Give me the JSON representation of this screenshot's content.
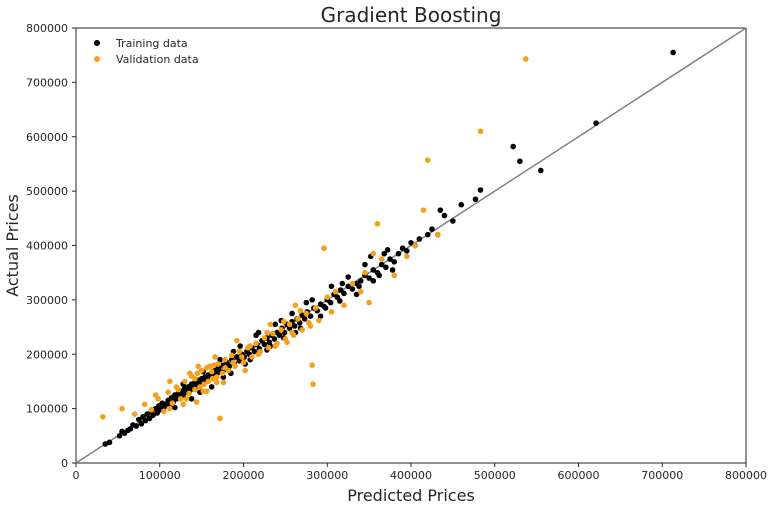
{
  "chart_data": {
    "type": "scatter",
    "title": "Gradient Boosting",
    "xlabel": "Predicted Prices",
    "ylabel": "Actual Prices",
    "xlim": [
      0,
      800000
    ],
    "ylim": [
      0,
      800000
    ],
    "xticks": [
      "0",
      "100000",
      "200000",
      "300000",
      "400000",
      "500000",
      "600000",
      "700000",
      "800000"
    ],
    "yticks": [
      "0",
      "100000",
      "200000",
      "300000",
      "400000",
      "500000",
      "600000",
      "700000",
      "800000"
    ],
    "grid": false,
    "legend_position": "top-left",
    "reference_line": {
      "from": [
        0,
        0
      ],
      "to": [
        800000,
        800000
      ],
      "color": "#808080"
    },
    "series": [
      {
        "name": "Training data",
        "color": "#000000",
        "points": [
          [
            35000,
            35000
          ],
          [
            40000,
            38000
          ],
          [
            52000,
            50000
          ],
          [
            55000,
            58000
          ],
          [
            58000,
            55000
          ],
          [
            62000,
            60000
          ],
          [
            65000,
            63000
          ],
          [
            68000,
            70000
          ],
          [
            72000,
            68000
          ],
          [
            75000,
            80000
          ],
          [
            78000,
            72000
          ],
          [
            80000,
            85000
          ],
          [
            83000,
            78000
          ],
          [
            85000,
            90000
          ],
          [
            88000,
            82000
          ],
          [
            90000,
            95000
          ],
          [
            92000,
            88000
          ],
          [
            95000,
            100000
          ],
          [
            97000,
            92000
          ],
          [
            99000,
            105000
          ],
          [
            101000,
            98000
          ],
          [
            103000,
            110000
          ],
          [
            105000,
            102000
          ],
          [
            107000,
            108000
          ],
          [
            110000,
            115000
          ],
          [
            112000,
            106000
          ],
          [
            114000,
            120000
          ],
          [
            116000,
            112000
          ],
          [
            118000,
            125000
          ],
          [
            120000,
            118000
          ],
          [
            122000,
            128000
          ],
          [
            124000,
            120000
          ],
          [
            126000,
            132000
          ],
          [
            128000,
            125000
          ],
          [
            130000,
            138000
          ],
          [
            132000,
            130000
          ],
          [
            134000,
            140000
          ],
          [
            136000,
            133000
          ],
          [
            138000,
            145000
          ],
          [
            140000,
            137000
          ],
          [
            142000,
            148000
          ],
          [
            144000,
            140000
          ],
          [
            146000,
            152000
          ],
          [
            148000,
            145000
          ],
          [
            150000,
            155000
          ],
          [
            152000,
            148000
          ],
          [
            154000,
            158000
          ],
          [
            156000,
            150000
          ],
          [
            158000,
            162000
          ],
          [
            160000,
            155000
          ],
          [
            162000,
            165000
          ],
          [
            164000,
            160000
          ],
          [
            166000,
            170000
          ],
          [
            168000,
            163000
          ],
          [
            170000,
            175000
          ],
          [
            172000,
            168000
          ],
          [
            175000,
            180000
          ],
          [
            178000,
            172000
          ],
          [
            180000,
            185000
          ],
          [
            183000,
            178000
          ],
          [
            186000,
            190000
          ],
          [
            189000,
            183000
          ],
          [
            192000,
            195000
          ],
          [
            195000,
            188000
          ],
          [
            198000,
            200000
          ],
          [
            201000,
            195000
          ],
          [
            204000,
            205000
          ],
          [
            207000,
            200000
          ],
          [
            210000,
            212000
          ],
          [
            213000,
            205000
          ],
          [
            216000,
            218000
          ],
          [
            219000,
            210000
          ],
          [
            222000,
            225000
          ],
          [
            225000,
            218000
          ],
          [
            228000,
            230000
          ],
          [
            231000,
            222000
          ],
          [
            234000,
            235000
          ],
          [
            237000,
            228000
          ],
          [
            240000,
            240000
          ],
          [
            243000,
            235000
          ],
          [
            246000,
            248000
          ],
          [
            249000,
            240000
          ],
          [
            252000,
            255000
          ],
          [
            255000,
            248000
          ],
          [
            258000,
            260000
          ],
          [
            261000,
            252000
          ],
          [
            264000,
            265000
          ],
          [
            267000,
            258000
          ],
          [
            270000,
            272000
          ],
          [
            273000,
            265000
          ],
          [
            276000,
            278000
          ],
          [
            280000,
            270000
          ],
          [
            284000,
            285000
          ],
          [
            288000,
            280000
          ],
          [
            292000,
            292000
          ],
          [
            296000,
            288000
          ],
          [
            300000,
            300000
          ],
          [
            304000,
            295000
          ],
          [
            308000,
            310000
          ],
          [
            312000,
            305000
          ],
          [
            316000,
            318000
          ],
          [
            320000,
            312000
          ],
          [
            325000,
            325000
          ],
          [
            330000,
            320000
          ],
          [
            335000,
            330000
          ],
          [
            340000,
            335000
          ],
          [
            345000,
            345000
          ],
          [
            350000,
            340000
          ],
          [
            355000,
            355000
          ],
          [
            360000,
            350000
          ],
          [
            365000,
            365000
          ],
          [
            370000,
            360000
          ],
          [
            375000,
            375000
          ],
          [
            380000,
            370000
          ],
          [
            385000,
            385000
          ],
          [
            390000,
            395000
          ],
          [
            395000,
            390000
          ],
          [
            400000,
            405000
          ],
          [
            405000,
            400000
          ],
          [
            410000,
            412000
          ],
          [
            420000,
            420000
          ],
          [
            425000,
            430000
          ],
          [
            432000,
            420000
          ],
          [
            435000,
            465000
          ],
          [
            440000,
            455000
          ],
          [
            450000,
            445000
          ],
          [
            460000,
            475000
          ],
          [
            477000,
            485000
          ],
          [
            483000,
            502000
          ],
          [
            522000,
            582000
          ],
          [
            530000,
            555000
          ],
          [
            555000,
            538000
          ],
          [
            621000,
            625000
          ],
          [
            713000,
            755000
          ],
          [
            118000,
            102000
          ],
          [
            128000,
            145000
          ],
          [
            148000,
            130000
          ],
          [
            162000,
            140000
          ],
          [
            172000,
            190000
          ],
          [
            185000,
            165000
          ],
          [
            196000,
            215000
          ],
          [
            208000,
            190000
          ],
          [
            215000,
            235000
          ],
          [
            228000,
            208000
          ],
          [
            238000,
            255000
          ],
          [
            248000,
            230000
          ],
          [
            258000,
            275000
          ],
          [
            268000,
            248000
          ],
          [
            282000,
            300000
          ],
          [
            292000,
            270000
          ],
          [
            305000,
            325000
          ],
          [
            315000,
            298000
          ],
          [
            325000,
            342000
          ],
          [
            335000,
            310000
          ],
          [
            345000,
            365000
          ],
          [
            355000,
            335000
          ],
          [
            368000,
            385000
          ],
          [
            378000,
            355000
          ],
          [
            138000,
            118000
          ],
          [
            152000,
            168000
          ],
          [
            176000,
            158000
          ],
          [
            188000,
            205000
          ],
          [
            202000,
            182000
          ],
          [
            218000,
            240000
          ],
          [
            232000,
            215000
          ],
          [
            245000,
            262000
          ],
          [
            262000,
            240000
          ],
          [
            275000,
            295000
          ],
          [
            298000,
            285000
          ],
          [
            318000,
            330000
          ],
          [
            338000,
            325000
          ],
          [
            352000,
            380000
          ],
          [
            362000,
            345000
          ],
          [
            372000,
            392000
          ]
        ]
      },
      {
        "name": "Validation data",
        "color": "#f5a01a",
        "points": [
          [
            32000,
            85000
          ],
          [
            55000,
            100000
          ],
          [
            70000,
            90000
          ],
          [
            82000,
            108000
          ],
          [
            90000,
            98000
          ],
          [
            98000,
            118000
          ],
          [
            105000,
            95000
          ],
          [
            110000,
            130000
          ],
          [
            115000,
            110000
          ],
          [
            120000,
            140000
          ],
          [
            125000,
            118000
          ],
          [
            130000,
            150000
          ],
          [
            135000,
            128000
          ],
          [
            138000,
            160000
          ],
          [
            142000,
            135000
          ],
          [
            145000,
            165000
          ],
          [
            148000,
            140000
          ],
          [
            150000,
            170000
          ],
          [
            153000,
            145000
          ],
          [
            156000,
            175000
          ],
          [
            158000,
            150000
          ],
          [
            160000,
            178000
          ],
          [
            163000,
            155000
          ],
          [
            165000,
            180000
          ],
          [
            168000,
            158000
          ],
          [
            170000,
            182000
          ],
          [
            172000,
            82000
          ],
          [
            175000,
            165000
          ],
          [
            178000,
            190000
          ],
          [
            182000,
            170000
          ],
          [
            186000,
            198000
          ],
          [
            190000,
            178000
          ],
          [
            195000,
            205000
          ],
          [
            200000,
            185000
          ],
          [
            205000,
            212000
          ],
          [
            210000,
            195000
          ],
          [
            215000,
            220000
          ],
          [
            220000,
            205000
          ],
          [
            225000,
            230000
          ],
          [
            230000,
            212000
          ],
          [
            235000,
            238000
          ],
          [
            240000,
            220000
          ],
          [
            245000,
            245000
          ],
          [
            250000,
            228000
          ],
          [
            255000,
            255000
          ],
          [
            260000,
            235000
          ],
          [
            265000,
            265000
          ],
          [
            270000,
            245000
          ],
          [
            275000,
            275000
          ],
          [
            280000,
            252000
          ],
          [
            283000,
            145000
          ],
          [
            282000,
            180000
          ],
          [
            286000,
            285000
          ],
          [
            290000,
            262000
          ],
          [
            296000,
            395000
          ],
          [
            300000,
            305000
          ],
          [
            305000,
            278000
          ],
          [
            310000,
            315000
          ],
          [
            320000,
            290000
          ],
          [
            330000,
            330000
          ],
          [
            340000,
            315000
          ],
          [
            345000,
            350000
          ],
          [
            350000,
            295000
          ],
          [
            355000,
            385000
          ],
          [
            360000,
            440000
          ],
          [
            365000,
            375000
          ],
          [
            380000,
            345000
          ],
          [
            395000,
            380000
          ],
          [
            405000,
            400000
          ],
          [
            415000,
            465000
          ],
          [
            420000,
            557000
          ],
          [
            432000,
            420000
          ],
          [
            483000,
            610000
          ],
          [
            537000,
            743000
          ],
          [
            95000,
            125000
          ],
          [
            112000,
            100000
          ],
          [
            122000,
            135000
          ],
          [
            132000,
            118000
          ],
          [
            142000,
            155000
          ],
          [
            152000,
            132000
          ],
          [
            162000,
            168000
          ],
          [
            168000,
            148000
          ],
          [
            178000,
            175000
          ],
          [
            188000,
            185000
          ],
          [
            198000,
            195000
          ],
          [
            208000,
            215000
          ],
          [
            218000,
            200000
          ],
          [
            228000,
            240000
          ],
          [
            238000,
            215000
          ],
          [
            248000,
            260000
          ],
          [
            258000,
            240000
          ],
          [
            268000,
            280000
          ],
          [
            278000,
            258000
          ],
          [
            112000,
            150000
          ],
          [
            128000,
            108000
          ],
          [
            146000,
            178000
          ],
          [
            156000,
            132000
          ],
          [
            166000,
            195000
          ],
          [
            176000,
            148000
          ],
          [
            192000,
            225000
          ],
          [
            202000,
            170000
          ],
          [
            232000,
            255000
          ],
          [
            252000,
            222000
          ],
          [
            262000,
            290000
          ],
          [
            144000,
            112000
          ],
          [
            136000,
            165000
          ]
        ]
      }
    ]
  }
}
